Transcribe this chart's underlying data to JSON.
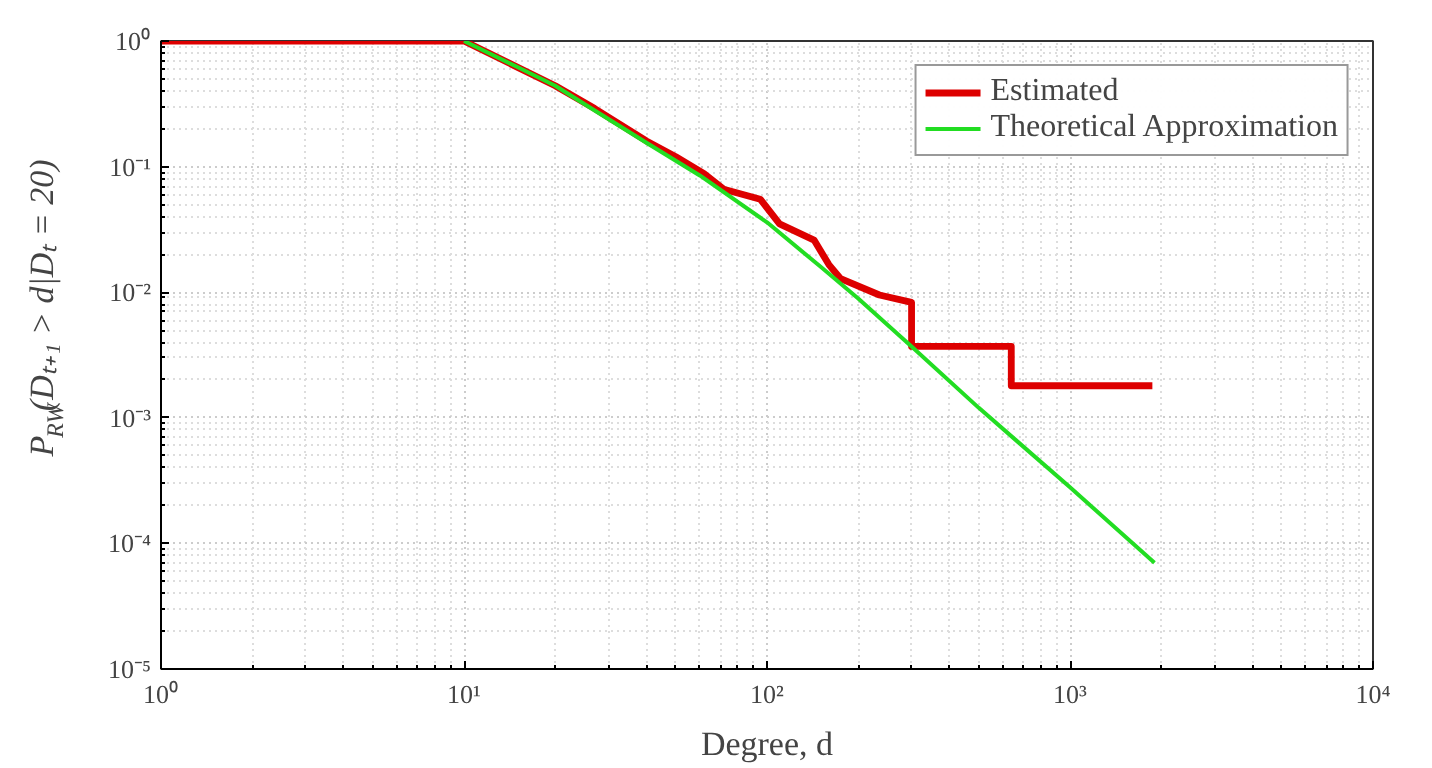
{
  "chart_data": {
    "type": "line",
    "xlabel": "Degree, d",
    "ylabel": "P$_{RW}$(Dₜ₊₁ > d|Dₜ = 20)",
    "log": "xy",
    "grid": true,
    "legend": "top right",
    "xlim": [
      1,
      10000
    ],
    "ylim": [
      1e-05,
      1
    ],
    "xticks": [
      {
        "value": 1,
        "label": "10⁰"
      },
      {
        "value": 10,
        "label": "10¹"
      },
      {
        "value": 100,
        "label": "10²"
      },
      {
        "value": 1000,
        "label": "10³"
      },
      {
        "value": 10000,
        "label": "10⁴"
      }
    ],
    "yticks": [
      {
        "value": 1e-05,
        "label": "10⁻⁵"
      },
      {
        "value": 0.0001,
        "label": "10⁻⁴"
      },
      {
        "value": 0.001,
        "label": "10⁻³"
      },
      {
        "value": 0.01,
        "label": "10⁻²"
      },
      {
        "value": 0.1,
        "label": "10⁻¹"
      },
      {
        "value": 1,
        "label": "10⁰"
      }
    ],
    "series": [
      {
        "name": "Estimated",
        "color": "#dd0000",
        "x": [
          1,
          10,
          20,
          27,
          40,
          50,
          62,
          72,
          95,
          110,
          143,
          160,
          175,
          235,
          300,
          300,
          640,
          640,
          1870
        ],
        "values": [
          1,
          1,
          0.44,
          0.29,
          0.16,
          0.12,
          0.088,
          0.066,
          0.055,
          0.035,
          0.026,
          0.0166,
          0.0128,
          0.0095,
          0.0083,
          0.0037,
          0.0037,
          0.0018,
          0.0018
        ]
      },
      {
        "name": "Theoretical Approximation",
        "color": "#22dd22",
        "x": [
          10,
          15,
          20,
          27,
          40,
          60,
          100,
          150,
          200,
          300,
          500,
          1000,
          1900
        ],
        "values": [
          1,
          0.62,
          0.44,
          0.28,
          0.155,
          0.085,
          0.036,
          0.016,
          0.0089,
          0.0037,
          0.0012,
          0.00028,
          7e-05
        ]
      }
    ]
  }
}
